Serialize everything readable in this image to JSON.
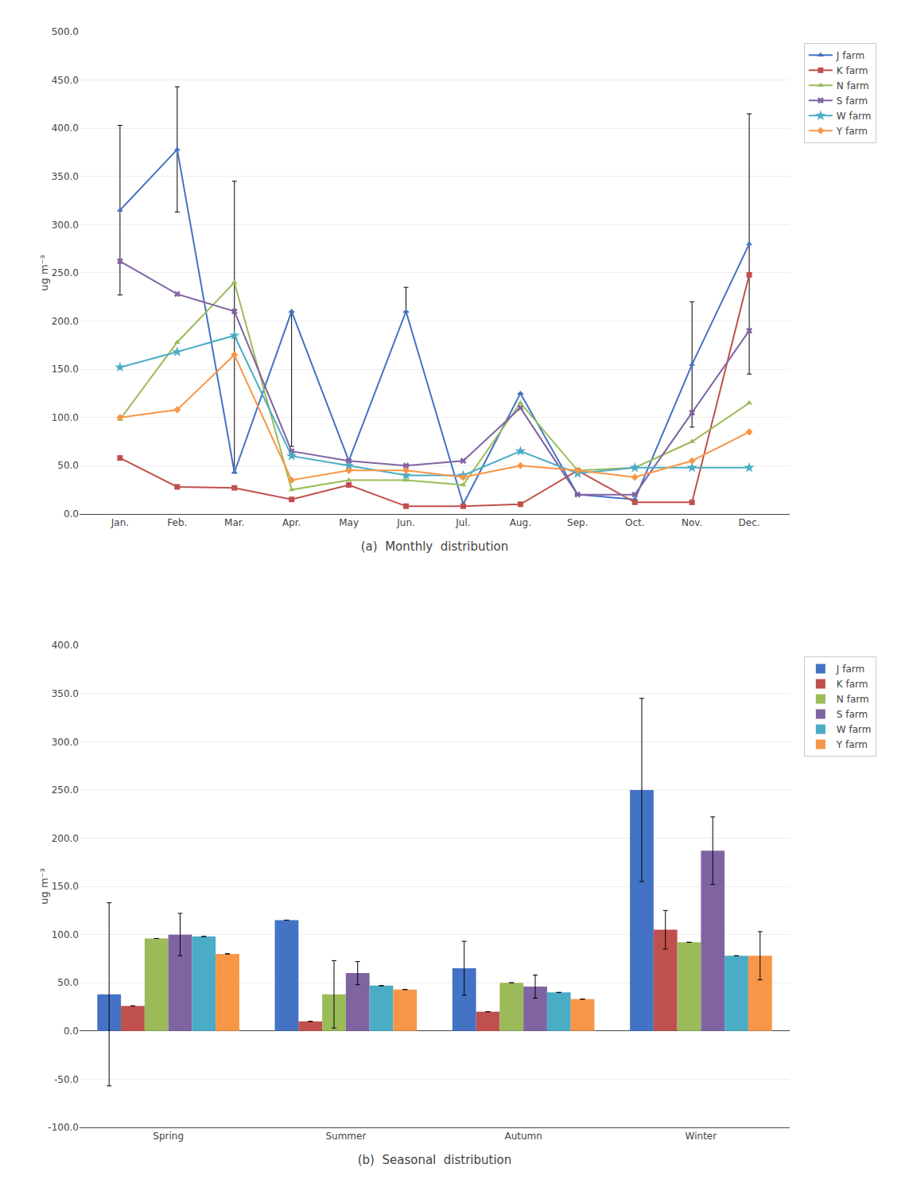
{
  "chart_data": [
    {
      "type": "line",
      "title": "(a)  Monthly  distribution",
      "ylabel": "ug m⁻³",
      "categories": [
        "Jan.",
        "Feb.",
        "Mar.",
        "Apr.",
        "May",
        "Jun.",
        "Jul.",
        "Aug.",
        "Sep.",
        "Oct.",
        "Nov.",
        "Dec."
      ],
      "ylim": [
        0,
        500
      ],
      "yticks": [
        {
          "value": 0,
          "label": "0.0"
        },
        {
          "value": 50,
          "label": "50.0"
        },
        {
          "value": 100,
          "label": "100.0"
        },
        {
          "value": 150,
          "label": "150.0"
        },
        {
          "value": 200,
          "label": "200.0"
        },
        {
          "value": 250,
          "label": "250.0"
        },
        {
          "value": 300,
          "label": "300.0"
        },
        {
          "value": 350,
          "label": "350.0"
        },
        {
          "value": 400,
          "label": "400.0"
        },
        {
          "value": 450,
          "label": "450.0"
        },
        {
          "value": 500,
          "label": "500.0"
        }
      ],
      "grid": true,
      "legend": "right",
      "series": [
        {
          "name": "J farm",
          "color": "#4472C4",
          "marker": "triangle-up",
          "line_style": "solid",
          "values": [
            315,
            378,
            43,
            210,
            55,
            210,
            10,
            125,
            20,
            15,
            155,
            280
          ],
          "error_low": [
            88,
            65,
            0,
            140,
            0,
            0,
            0,
            0,
            0,
            0,
            65,
            135
          ],
          "error_high": [
            88,
            65,
            302,
            0,
            0,
            25,
            0,
            0,
            0,
            0,
            65,
            135
          ]
        },
        {
          "name": "K farm",
          "color": "#C0504D",
          "marker": "square",
          "line_style": "solid",
          "values": [
            58,
            28,
            27,
            15,
            30,
            8,
            8,
            10,
            45,
            12,
            12,
            248
          ]
        },
        {
          "name": "N farm",
          "color": "#9BBB59",
          "marker": "triangle-up",
          "line_style": "solid",
          "values": [
            98,
            178,
            240,
            25,
            35,
            35,
            30,
            115,
            45,
            48,
            75,
            115
          ]
        },
        {
          "name": "S farm",
          "color": "#8064A2",
          "marker": "x",
          "line_style": "solid",
          "values": [
            262,
            228,
            210,
            65,
            55,
            50,
            55,
            110,
            20,
            20,
            105,
            190
          ]
        },
        {
          "name": "W farm",
          "color": "#4BACC6",
          "marker": "star",
          "line_style": "solid",
          "values": [
            152,
            168,
            185,
            60,
            50,
            40,
            40,
            65,
            42,
            48,
            48,
            48
          ]
        },
        {
          "name": "Y farm",
          "color": "#F79646",
          "marker": "diamond",
          "line_style": "solid",
          "values": [
            100,
            108,
            165,
            35,
            45,
            45,
            38,
            50,
            45,
            38,
            55,
            85
          ]
        }
      ]
    },
    {
      "type": "bar",
      "title": "(b)  Seasonal  distribution",
      "ylabel": "ug m⁻³",
      "categories": [
        "Spring",
        "Summer",
        "Autumn",
        "Winter"
      ],
      "ylim": [
        -100,
        400
      ],
      "yticks": [
        {
          "value": -100,
          "label": "-100.0"
        },
        {
          "value": -50,
          "label": "-50.0"
        },
        {
          "value": 0,
          "label": "0.0"
        },
        {
          "value": 50,
          "label": "50.0"
        },
        {
          "value": 100,
          "label": "100.0"
        },
        {
          "value": 150,
          "label": "150.0"
        },
        {
          "value": 200,
          "label": "200.0"
        },
        {
          "value": 250,
          "label": "250.0"
        },
        {
          "value": 300,
          "label": "300.0"
        },
        {
          "value": 350,
          "label": "350.0"
        },
        {
          "value": 400,
          "label": "400.0"
        }
      ],
      "grid": true,
      "legend": "right",
      "series": [
        {
          "name": "J farm",
          "color": "#4472C4",
          "values": [
            38,
            115,
            65,
            250
          ],
          "errors": [
            95,
            0,
            28,
            95
          ]
        },
        {
          "name": "K farm",
          "color": "#C0504D",
          "values": [
            26,
            10,
            20,
            105
          ],
          "errors": [
            0,
            0,
            0,
            20
          ]
        },
        {
          "name": "N farm",
          "color": "#9BBB59",
          "values": [
            96,
            38,
            50,
            92
          ],
          "errors": [
            0,
            35,
            0,
            0
          ]
        },
        {
          "name": "S farm",
          "color": "#8064A2",
          "values": [
            100,
            60,
            46,
            187
          ],
          "errors": [
            22,
            12,
            12,
            35
          ]
        },
        {
          "name": "W farm",
          "color": "#4BACC6",
          "values": [
            98,
            47,
            40,
            78
          ],
          "errors": [
            0,
            0,
            0,
            0
          ]
        },
        {
          "name": "Y farm",
          "color": "#F79646",
          "values": [
            80,
            43,
            33,
            78
          ],
          "errors": [
            0,
            0,
            0,
            25
          ]
        }
      ]
    }
  ]
}
